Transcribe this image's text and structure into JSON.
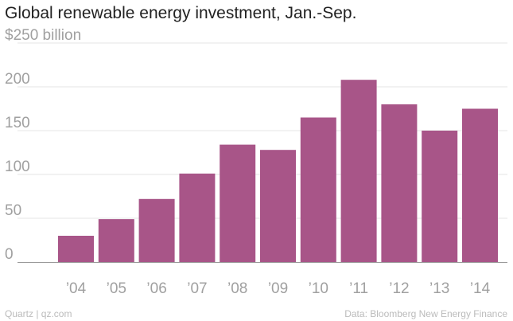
{
  "title": "Global renewable energy investment, Jan.-Sep.",
  "footer": {
    "source_left": "Quartz | qz.com",
    "source_right": "Data: Bloomberg New Energy Finance"
  },
  "colors": {
    "bar": "#a85588",
    "grid": "#e6e6e6",
    "axis_text": "#a0a0a0"
  },
  "chart_data": {
    "type": "bar",
    "title": "Global renewable energy investment, Jan.-Sep.",
    "xlabel": "",
    "ylabel": "$ billion",
    "categories": [
      "’04",
      "’05",
      "’06",
      "’07",
      "’08",
      "’09",
      "’10",
      "’11",
      "’12",
      "’13",
      "’14"
    ],
    "values": [
      30,
      49,
      72,
      101,
      134,
      128,
      165,
      208,
      180,
      150,
      175
    ],
    "ylim": [
      0,
      250
    ],
    "yticks": [
      0,
      50,
      100,
      150,
      200,
      250
    ],
    "ytick_labels": [
      "0",
      "50",
      "100",
      "150",
      "200",
      "$250 billion"
    ],
    "grid": true
  }
}
